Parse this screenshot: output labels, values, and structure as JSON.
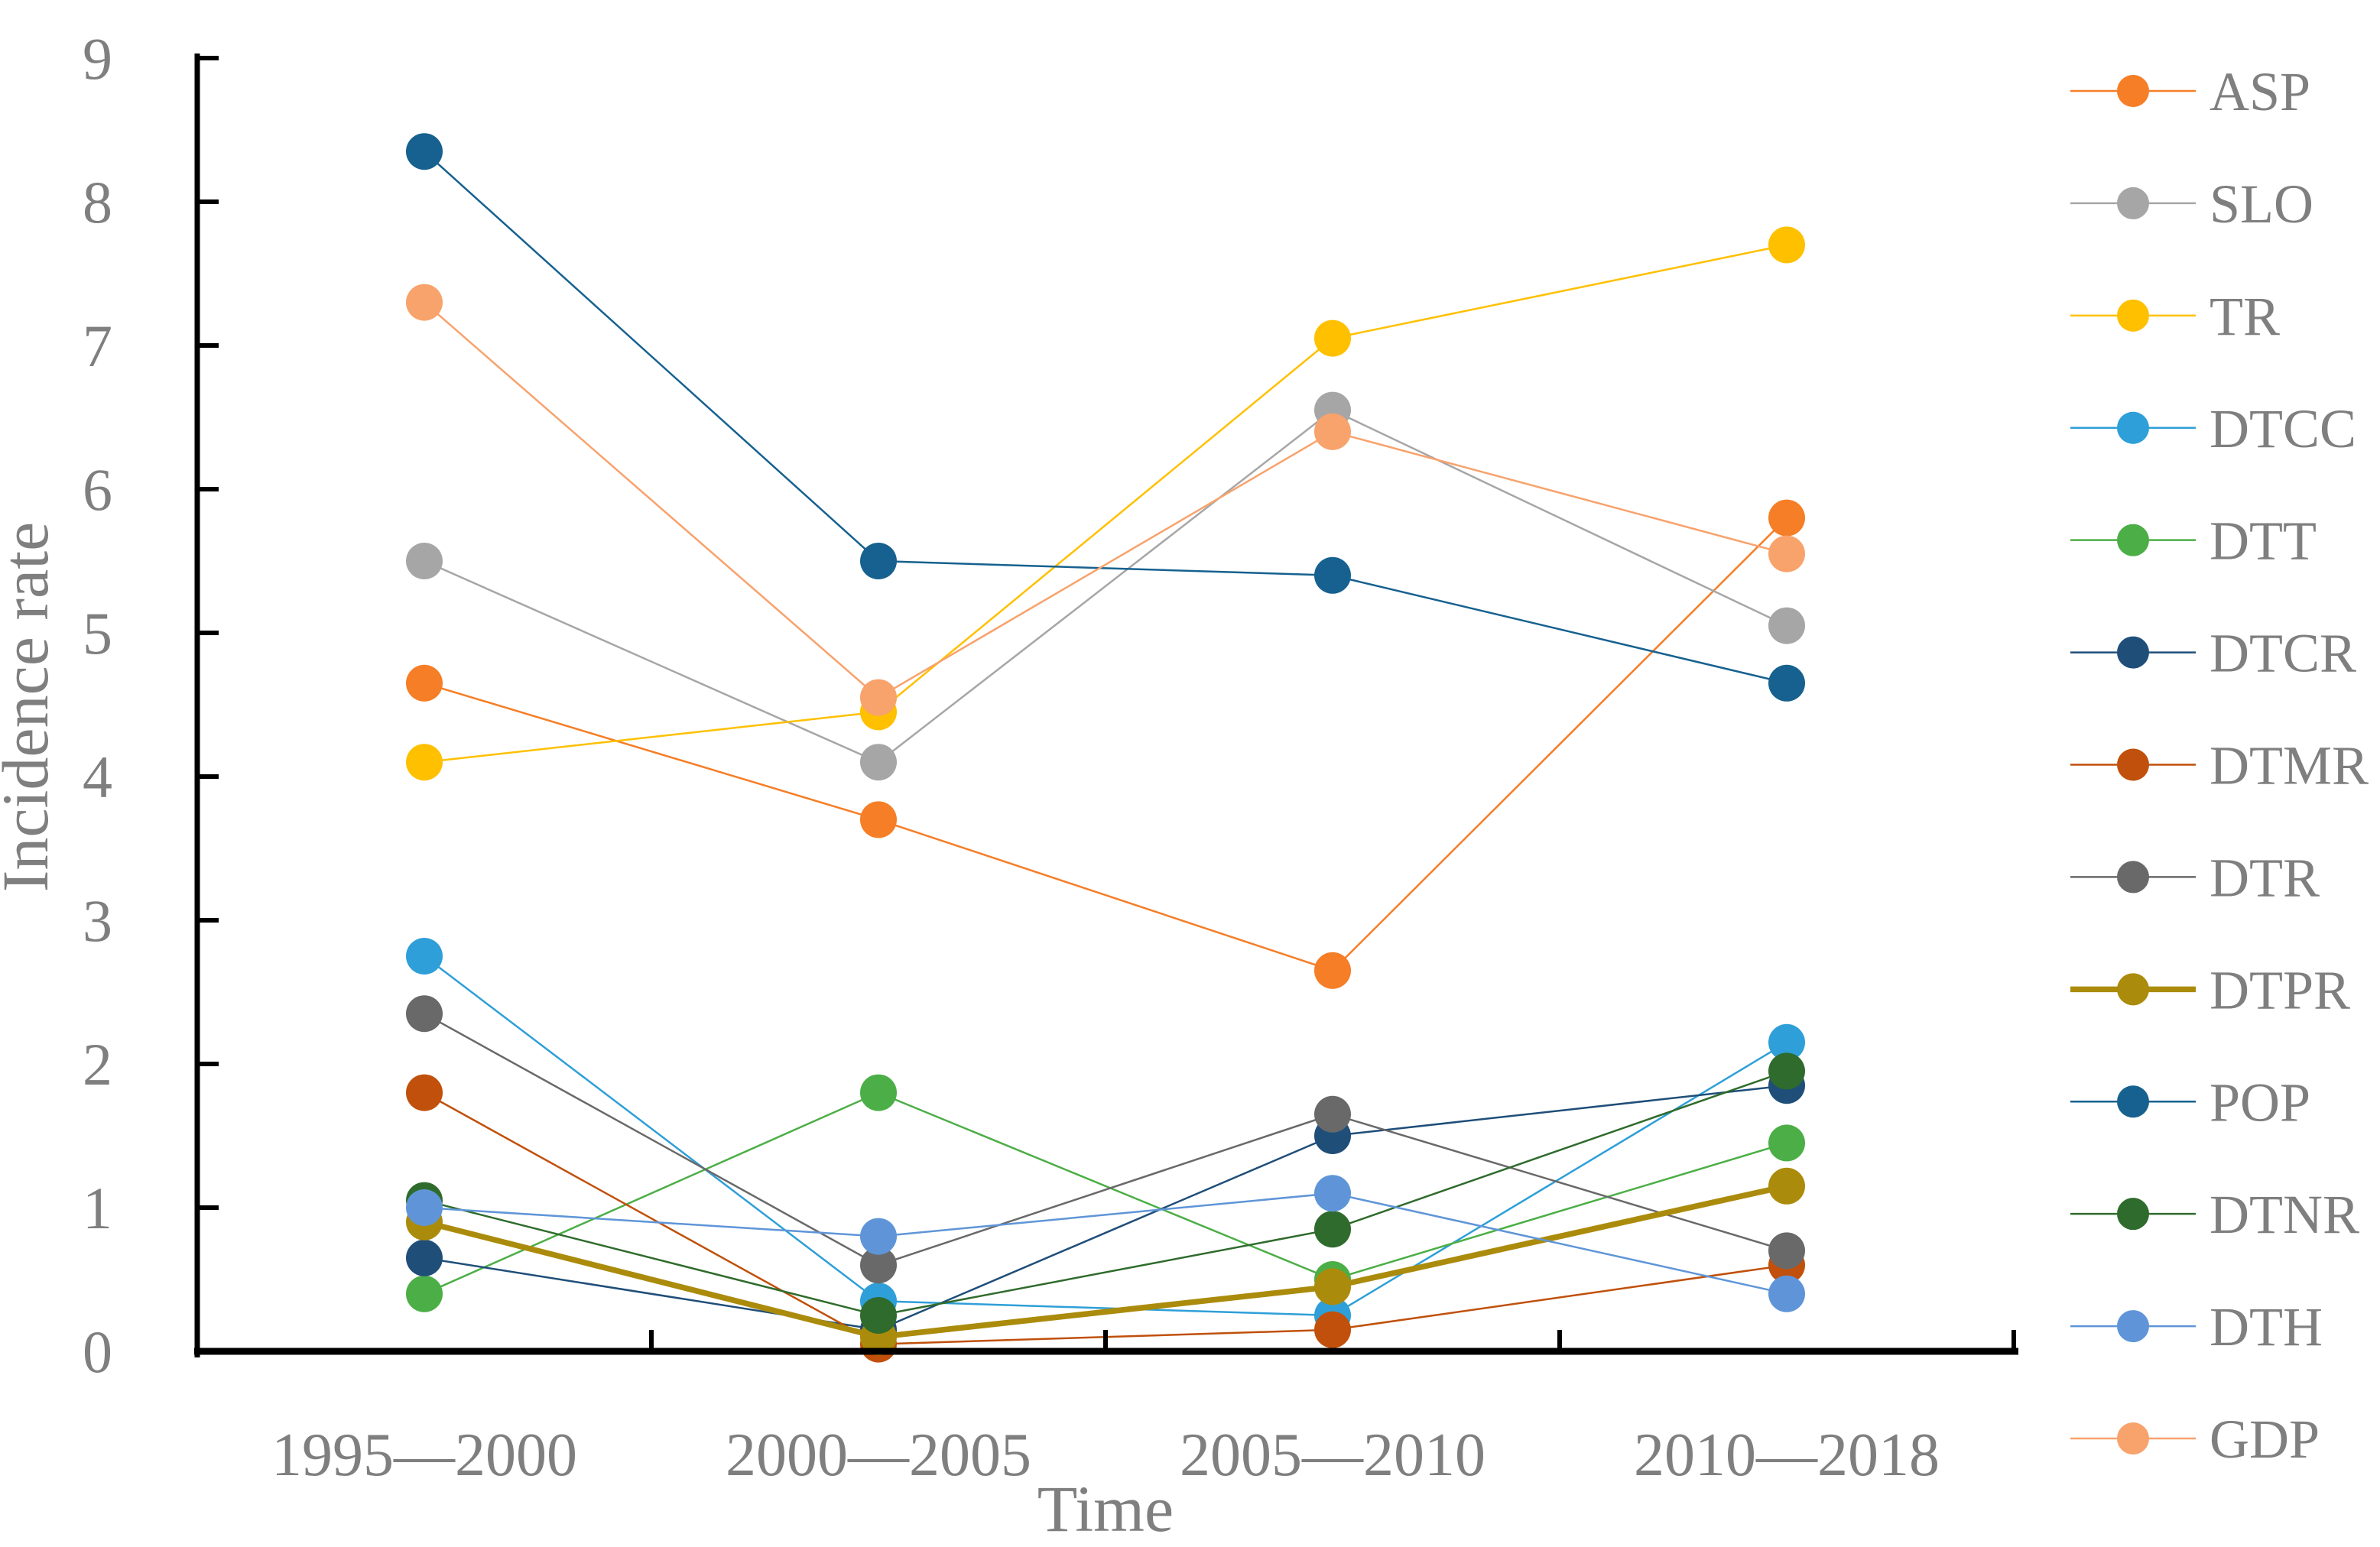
{
  "figure": {
    "background": "#FFFFFF",
    "text_color": "#7F7F7F",
    "axis_color": "#000000"
  },
  "chart_data": {
    "type": "line",
    "title": "",
    "xlabel": "Time",
    "ylabel": "Incidence rate",
    "categories": [
      "1995—2000",
      "2000—2005",
      "2005—2010",
      "2010—2018"
    ],
    "ylim": [
      0,
      9
    ],
    "yticks": [
      "0",
      "1",
      "2",
      "3",
      "4",
      "5",
      "6",
      "7",
      "8",
      "9"
    ],
    "grid": false,
    "legend_position": "right",
    "marker": "circle",
    "series": [
      {
        "name": "ASP",
        "color": "#F57E27",
        "line_width": 2.5,
        "values": [
          4.65,
          3.7,
          2.65,
          5.8
        ]
      },
      {
        "name": "SLO",
        "color": "#A6A6A6",
        "line_width": 2.5,
        "values": [
          5.5,
          4.1,
          6.55,
          5.05
        ]
      },
      {
        "name": "TR",
        "color": "#FFC000",
        "line_width": 2.5,
        "values": [
          4.1,
          4.45,
          7.05,
          7.7
        ]
      },
      {
        "name": "DTCC",
        "color": "#2E9FD8",
        "line_width": 2.5,
        "values": [
          2.75,
          0.35,
          0.25,
          2.15
        ]
      },
      {
        "name": "DTT",
        "color": "#4CAE46",
        "line_width": 2.5,
        "values": [
          0.4,
          1.8,
          0.5,
          1.45
        ]
      },
      {
        "name": "DTCR",
        "color": "#1F4E79",
        "line_width": 2.5,
        "values": [
          0.65,
          0.15,
          1.5,
          1.85
        ]
      },
      {
        "name": "DTMR",
        "color": "#C0500B",
        "line_width": 2.5,
        "values": [
          1.8,
          0.05,
          0.15,
          0.6
        ]
      },
      {
        "name": "DTR",
        "color": "#696969",
        "line_width": 2.5,
        "values": [
          2.35,
          0.6,
          1.65,
          0.7
        ]
      },
      {
        "name": "DTPR",
        "color": "#AB8B0B",
        "line_width": 7.5,
        "values": [
          0.9,
          0.1,
          0.45,
          1.15
        ]
      },
      {
        "name": "POP",
        "color": "#16618F",
        "line_width": 2.5,
        "values": [
          8.35,
          5.5,
          5.4,
          4.65
        ]
      },
      {
        "name": "DTNR",
        "color": "#2F6B2C",
        "line_width": 2.5,
        "values": [
          1.05,
          0.25,
          0.85,
          1.95
        ]
      },
      {
        "name": "DTH",
        "color": "#5F95D8",
        "line_width": 2.5,
        "values": [
          1.0,
          0.8,
          1.1,
          0.4
        ]
      },
      {
        "name": "GDP",
        "color": "#F8A26C",
        "line_width": 2.5,
        "values": [
          7.3,
          4.55,
          6.4,
          5.55
        ]
      }
    ]
  }
}
